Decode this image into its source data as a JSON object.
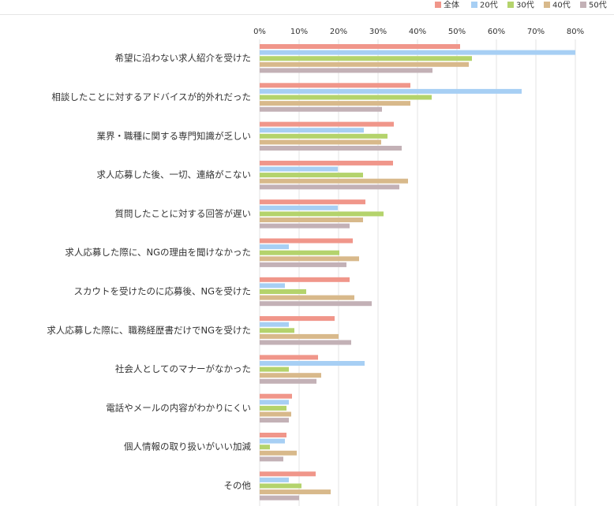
{
  "chart_data": {
    "type": "bar",
    "orientation": "horizontal",
    "categories": [
      "希望に沿わない求人紹介を受けた",
      "相談したことに対するアドバイスが的外れだった",
      "業界・職種に関する専門知識が乏しい",
      "求人応募した後、一切、連絡がこない",
      "質問したことに対する回答が遅い",
      "求人応募した際に、NGの理由を聞けなかった",
      "スカウトを受けたのに応募後、NGを受けた",
      "求人応募した際に、職務経歴書だけでNGを受けた",
      "社会人としてのマナーがなかった",
      "電話やメールの内容がわかりにくい",
      "個人情報の取り扱いがいい加減",
      "その他"
    ],
    "series": [
      {
        "name": "全体",
        "color": "#f0968a",
        "values": [
          50.8,
          38.2,
          34,
          33.8,
          26.8,
          23.6,
          22.8,
          19,
          14.8,
          8.2,
          6.8,
          14.2
        ]
      },
      {
        "name": "20代",
        "color": "#a7cff4",
        "values": [
          80,
          66.4,
          26.4,
          19.8,
          19.8,
          7.4,
          6.4,
          7.4,
          26.6,
          7.4,
          6.4,
          7.4
        ]
      },
      {
        "name": "30代",
        "color": "#b4d36c",
        "values": [
          53.8,
          43.6,
          32.4,
          26.2,
          31.4,
          20.2,
          11.8,
          8.8,
          7.4,
          6.8,
          2.6,
          10.6
        ]
      },
      {
        "name": "40代",
        "color": "#d8b98b",
        "values": [
          53,
          38.2,
          30.8,
          37.6,
          26.2,
          25.2,
          24,
          20,
          15.6,
          8,
          9.4,
          18
        ]
      },
      {
        "name": "50代",
        "color": "#c3b1b6",
        "values": [
          43.8,
          31,
          36,
          35.4,
          22.8,
          22,
          28.4,
          23.2,
          14.4,
          7.4,
          6,
          10
        ]
      }
    ],
    "xlim": [
      0,
      80
    ],
    "xticks": [
      {
        "value": 0,
        "label": "0%"
      },
      {
        "value": 10,
        "label": "10%"
      },
      {
        "value": 20,
        "label": "20%"
      },
      {
        "value": 30,
        "label": "30%"
      },
      {
        "value": 40,
        "label": "40%"
      },
      {
        "value": 50,
        "label": "50%"
      },
      {
        "value": 60,
        "label": "60%"
      },
      {
        "value": 70,
        "label": "70%"
      },
      {
        "value": 80,
        "label": "80%"
      }
    ],
    "grid": true,
    "legend": "top-right"
  }
}
